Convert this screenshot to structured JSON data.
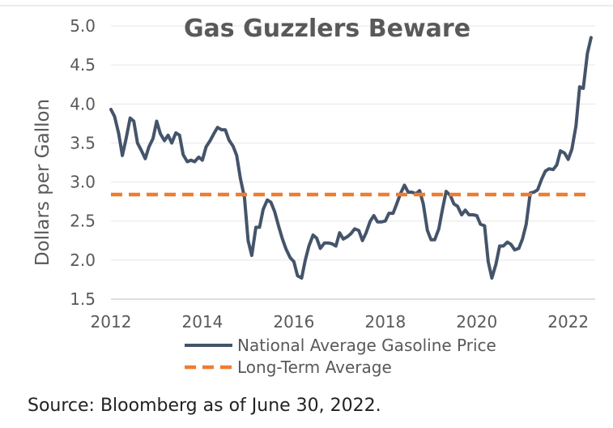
{
  "chart_data": {
    "type": "line",
    "title": "Gas Guzzlers Beware",
    "ylabel": "Dollars per Gallon",
    "xlabel": "",
    "ylim": [
      1.5,
      5.0
    ],
    "xlim": [
      2012,
      2022.2
    ],
    "y_ticks": [
      1.5,
      2.0,
      2.5,
      3.0,
      3.5,
      4.0,
      4.5,
      5.0
    ],
    "y_tick_labels": [
      "1.5",
      "2.0",
      "2.5",
      "3.0",
      "3.5",
      "4.0",
      "4.5",
      "5.0"
    ],
    "x_ticks": [
      2012,
      2014,
      2016,
      2018,
      2020,
      2022
    ],
    "x_tick_labels": [
      "2012",
      "2014",
      "2016",
      "2018",
      "2020",
      "2022"
    ],
    "grid": "horizontal",
    "legend_position": "bottom",
    "series": [
      {
        "name": "National Average Gasoline Price",
        "color": "#44546a",
        "style": "solid",
        "points": [
          [
            2012.0,
            3.93
          ],
          [
            2012.08,
            3.84
          ],
          [
            2012.17,
            3.62
          ],
          [
            2012.25,
            3.34
          ],
          [
            2012.33,
            3.55
          ],
          [
            2012.42,
            3.82
          ],
          [
            2012.5,
            3.78
          ],
          [
            2012.58,
            3.5
          ],
          [
            2012.67,
            3.4
          ],
          [
            2012.75,
            3.3
          ],
          [
            2012.83,
            3.45
          ],
          [
            2012.92,
            3.56
          ],
          [
            2013.0,
            3.78
          ],
          [
            2013.08,
            3.62
          ],
          [
            2013.17,
            3.53
          ],
          [
            2013.25,
            3.6
          ],
          [
            2013.33,
            3.5
          ],
          [
            2013.42,
            3.63
          ],
          [
            2013.5,
            3.6
          ],
          [
            2013.58,
            3.35
          ],
          [
            2013.67,
            3.26
          ],
          [
            2013.75,
            3.28
          ],
          [
            2013.83,
            3.26
          ],
          [
            2013.92,
            3.32
          ],
          [
            2014.0,
            3.28
          ],
          [
            2014.08,
            3.45
          ],
          [
            2014.17,
            3.53
          ],
          [
            2014.25,
            3.62
          ],
          [
            2014.33,
            3.7
          ],
          [
            2014.42,
            3.67
          ],
          [
            2014.5,
            3.67
          ],
          [
            2014.58,
            3.54
          ],
          [
            2014.67,
            3.46
          ],
          [
            2014.75,
            3.34
          ],
          [
            2014.83,
            3.05
          ],
          [
            2014.92,
            2.8
          ],
          [
            2015.0,
            2.25
          ],
          [
            2015.08,
            2.06
          ],
          [
            2015.17,
            2.42
          ],
          [
            2015.25,
            2.42
          ],
          [
            2015.33,
            2.65
          ],
          [
            2015.42,
            2.77
          ],
          [
            2015.5,
            2.74
          ],
          [
            2015.58,
            2.62
          ],
          [
            2015.67,
            2.43
          ],
          [
            2015.75,
            2.27
          ],
          [
            2015.83,
            2.14
          ],
          [
            2015.92,
            2.03
          ],
          [
            2016.0,
            1.98
          ],
          [
            2016.08,
            1.8
          ],
          [
            2016.17,
            1.77
          ],
          [
            2016.25,
            2.0
          ],
          [
            2016.33,
            2.18
          ],
          [
            2016.42,
            2.32
          ],
          [
            2016.5,
            2.28
          ],
          [
            2016.58,
            2.15
          ],
          [
            2016.67,
            2.22
          ],
          [
            2016.75,
            2.22
          ],
          [
            2016.83,
            2.21
          ],
          [
            2016.92,
            2.18
          ],
          [
            2017.0,
            2.35
          ],
          [
            2017.08,
            2.27
          ],
          [
            2017.17,
            2.3
          ],
          [
            2017.25,
            2.34
          ],
          [
            2017.33,
            2.4
          ],
          [
            2017.42,
            2.38
          ],
          [
            2017.5,
            2.25
          ],
          [
            2017.58,
            2.35
          ],
          [
            2017.67,
            2.5
          ],
          [
            2017.75,
            2.57
          ],
          [
            2017.83,
            2.49
          ],
          [
            2017.92,
            2.49
          ],
          [
            2018.0,
            2.5
          ],
          [
            2018.08,
            2.6
          ],
          [
            2018.17,
            2.6
          ],
          [
            2018.25,
            2.72
          ],
          [
            2018.33,
            2.85
          ],
          [
            2018.42,
            2.96
          ],
          [
            2018.5,
            2.87
          ],
          [
            2018.58,
            2.87
          ],
          [
            2018.67,
            2.85
          ],
          [
            2018.75,
            2.89
          ],
          [
            2018.83,
            2.72
          ],
          [
            2018.92,
            2.38
          ],
          [
            2019.0,
            2.26
          ],
          [
            2019.08,
            2.26
          ],
          [
            2019.17,
            2.4
          ],
          [
            2019.25,
            2.65
          ],
          [
            2019.33,
            2.88
          ],
          [
            2019.42,
            2.83
          ],
          [
            2019.5,
            2.72
          ],
          [
            2019.58,
            2.69
          ],
          [
            2019.67,
            2.58
          ],
          [
            2019.75,
            2.64
          ],
          [
            2019.83,
            2.58
          ],
          [
            2019.92,
            2.58
          ],
          [
            2020.0,
            2.57
          ],
          [
            2020.08,
            2.46
          ],
          [
            2020.17,
            2.44
          ],
          [
            2020.25,
            1.98
          ],
          [
            2020.33,
            1.77
          ],
          [
            2020.42,
            1.95
          ],
          [
            2020.5,
            2.18
          ],
          [
            2020.58,
            2.18
          ],
          [
            2020.67,
            2.23
          ],
          [
            2020.75,
            2.2
          ],
          [
            2020.83,
            2.13
          ],
          [
            2020.92,
            2.15
          ],
          [
            2021.0,
            2.27
          ],
          [
            2021.08,
            2.46
          ],
          [
            2021.17,
            2.86
          ],
          [
            2021.25,
            2.87
          ],
          [
            2021.33,
            2.9
          ],
          [
            2021.42,
            3.04
          ],
          [
            2021.5,
            3.14
          ],
          [
            2021.58,
            3.17
          ],
          [
            2021.67,
            3.16
          ],
          [
            2021.75,
            3.22
          ],
          [
            2021.83,
            3.4
          ],
          [
            2021.92,
            3.37
          ],
          [
            2022.0,
            3.29
          ],
          [
            2022.08,
            3.42
          ],
          [
            2022.17,
            3.72
          ],
          [
            2022.25,
            4.22
          ],
          [
            2022.33,
            4.2
          ],
          [
            2022.42,
            4.65
          ],
          [
            2022.5,
            4.85
          ]
        ]
      },
      {
        "name": "Long-Term Average",
        "color": "#ed7d31",
        "style": "dashed",
        "points": [
          [
            2012.0,
            2.84
          ],
          [
            2022.5,
            2.84
          ]
        ]
      }
    ]
  },
  "footer": {
    "source": "Source: Bloomberg as of June 30, 2022."
  }
}
